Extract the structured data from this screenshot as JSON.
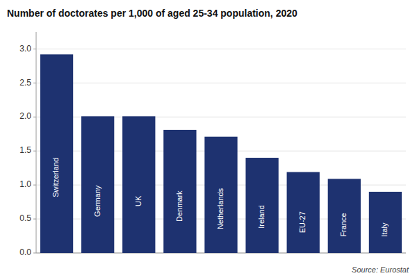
{
  "chart_data": {
    "type": "bar",
    "title": "Number of doctorates per 1,000 of aged 25-34 population, 2020",
    "categories": [
      "Switzerland",
      "Germany",
      "UK",
      "Denmark",
      "Netherlands",
      "Ireland",
      "EU-27",
      "France",
      "Italy"
    ],
    "values": [
      2.92,
      2.01,
      2.01,
      1.81,
      1.71,
      1.4,
      1.19,
      1.09,
      0.9
    ],
    "color": "#1e3270",
    "ylim": [
      0,
      3.25
    ],
    "yticks": [
      {
        "value": 0,
        "label": "0.0"
      },
      0.5,
      {
        "value": 1,
        "label": "1.0"
      },
      1.5,
      {
        "value": 2,
        "label": "2.0"
      },
      2.5,
      {
        "value": 3,
        "label": "3.0"
      }
    ],
    "grid": true,
    "tick_labels": "y",
    "annotations": [
      "Source: Eurostat"
    ]
  }
}
